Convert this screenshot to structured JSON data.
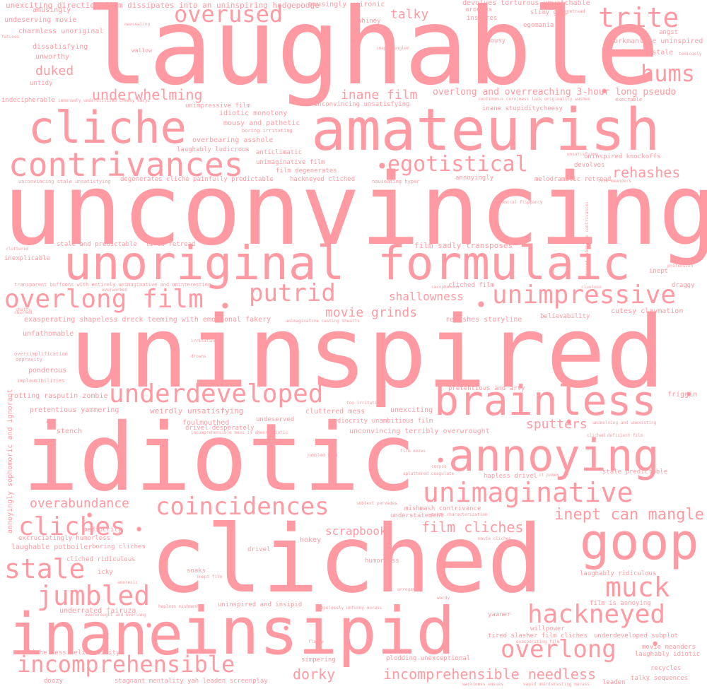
{
  "word_color": "#ff9aa2",
  "background_color": "#ffffff",
  "words": [
    "laughable",
    "unconvincing",
    "uninspired",
    "idiotic",
    "cliched",
    "insipid",
    "inane",
    "amateurish",
    "unoriginal",
    "formulaic",
    "cliche",
    "goop",
    "annoying",
    "brainless",
    "contrivances",
    "trite",
    "overused",
    "hums",
    "egotistical",
    "unimpressive",
    "overlong film",
    "putrid",
    "underdeveloped",
    "unimaginative",
    "coincidences",
    "cliches",
    "stale",
    "jumbled",
    "hackneyed",
    "muck",
    "overlong",
    "incomprehensible",
    "duked",
    "underwhelming",
    "inane film",
    "talky",
    "rehashes",
    "sputters",
    "movie grinds",
    "inept can mangle",
    "film cliches",
    "dorky",
    "incomprehensible needless",
    "overabundance",
    "scrapbook",
    "shallowness",
    "overlong and overreaching 3-hour long pseudo",
    "unexciting direction film dissipates into an uninspiring hodgepodge",
    "amusingly unironic",
    "devolves torturous unwatchable",
    "amusingly",
    "undeserving movie",
    "whiney",
    "arouses",
    "inspires",
    "slimy glop",
    "egomania",
    "angst",
    "charmless unoriginal",
    "mousy",
    "workmanlike uninspired",
    "dissatisfying",
    "hopelessly stale",
    "unworthy",
    "untidy",
    "indecipherable",
    "unimpressive film",
    "unconvincing unsatisfying",
    "inane stupiditycheesy",
    "idiotic monotony",
    "mousy and pathetic",
    "overbearing asshole",
    "laughably ludicrous",
    "anticlimatic",
    "uninspired knockoffs",
    "unimaginative film",
    "film degenerates",
    "devolves",
    "hackneyed cliched",
    "annoyingly",
    "melodramatic retread",
    "degenerates cliché painfully predictable",
    "unconvincing stale unsatisfying",
    "film sadly transposes",
    "stale and predictable",
    "tired retread",
    "inexplicable",
    "transparent buffoons with entirely unimaginative and uninteresting",
    "cliched film",
    "exasperating shapeless dreck teeming with emotional fakery",
    "rehashes storyline",
    "believability",
    "cutesy claymation",
    "unfathomable",
    "pretentious and arty",
    "ponderous",
    "rotting rasputin zombie",
    "weirdly unsatisfying",
    "pretentious yammering",
    "cluttered mess",
    "unexciting",
    "friggin",
    "foulmouthed",
    "undeserved",
    "mediocrity unambitious film",
    "drivel desperately",
    "unconvincing terribly overwrought",
    "stench",
    "stale predictable",
    "hapless drivel",
    "mishmash contrivance",
    "understatement",
    "hokey",
    "mediocrity",
    "excruciatingly humorless",
    "laughable potboiler",
    "boring cliches",
    "cliched ridiculous",
    "drivel",
    "humorless",
    "icky",
    "soaks",
    "laughably ridiculous",
    "uninspired and insipid",
    "underrated fairuza",
    "film is annoying",
    "yawner",
    "willpower",
    "tired slasher film cliches",
    "underdeveloped subplot",
    "movie meanders",
    "laughably idiotic",
    "simpering",
    "cliche less believability",
    "plodding unexceptional",
    "recycles",
    "doozy",
    "stagnant mentality yah leaden screenplay",
    "leaden",
    "talky sequences",
    "annoyingly sophomoric and ignorant",
    "chatty",
    "oversimplification",
    "depravity",
    "implausibilities",
    "irritating",
    "drowns",
    "nauseating",
    "retread",
    "fatuous",
    "inept bungler",
    "tediously",
    "wallow",
    "immensely underutilized cheeky karyo",
    "continuous corniness lack originality washes",
    "execrable",
    "boring irritating",
    "nauseating hyper",
    "unsatisfying",
    "film meanders",
    "comical flippancy",
    "moaned fabricate contrivances",
    "pretension",
    "cacophonous",
    "clueless",
    "draggy",
    "inept",
    "overworked",
    "churned",
    "unimaginative casting thwarts",
    "too irritating",
    "incomprehensible mess is sheer idiotic",
    "unimolving and unexisting",
    "cliched deficient film",
    "film oozes",
    "jumbled film",
    "corpse",
    "splattered coagulate",
    "it pokes",
    "subtext pervades",
    "trite characterization",
    "movie cliches",
    "anorexic",
    "arrogant",
    "wordy",
    "inept film",
    "hapless mishmash",
    "overwrought and overlong",
    "hopelessly unfunny morass",
    "flabby",
    "exasperating film",
    "wackiness ensues",
    "vapid uninteresting morass",
    "cluttered"
  ]
}
